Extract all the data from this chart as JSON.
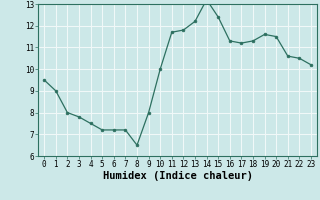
{
  "x": [
    0,
    1,
    2,
    3,
    4,
    5,
    6,
    7,
    8,
    9,
    10,
    11,
    12,
    13,
    14,
    15,
    16,
    17,
    18,
    19,
    20,
    21,
    22,
    23
  ],
  "y": [
    9.5,
    9.0,
    8.0,
    7.8,
    7.5,
    7.2,
    7.2,
    7.2,
    6.5,
    8.0,
    10.0,
    11.7,
    11.8,
    12.2,
    13.2,
    12.4,
    11.3,
    11.2,
    11.3,
    11.6,
    11.5,
    10.6,
    10.5,
    10.2
  ],
  "xlabel": "Humidex (Indice chaleur)",
  "ylim": [
    6,
    13
  ],
  "xlim": [
    -0.5,
    23.5
  ],
  "yticks": [
    6,
    7,
    8,
    9,
    10,
    11,
    12,
    13
  ],
  "xticks": [
    0,
    1,
    2,
    3,
    4,
    5,
    6,
    7,
    8,
    9,
    10,
    11,
    12,
    13,
    14,
    15,
    16,
    17,
    18,
    19,
    20,
    21,
    22,
    23
  ],
  "line_color": "#2d7060",
  "marker_color": "#2d7060",
  "bg_color": "#cce8e8",
  "grid_color": "#f0f8f8",
  "axes_bg": "#cce8e8",
  "tick_label_fontsize": 5.5,
  "xlabel_fontsize": 7.5
}
